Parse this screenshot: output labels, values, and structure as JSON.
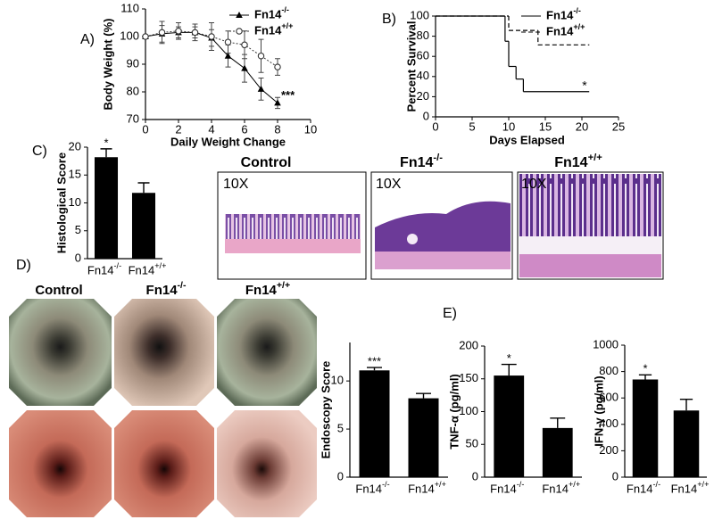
{
  "chart_data": [
    {
      "type": "line",
      "panel_label": "A)",
      "xlabel": "Daily Weight Change",
      "ylabel": "Body Weight (%)",
      "x": [
        0,
        1,
        2,
        3,
        4,
        5,
        6,
        7,
        8
      ],
      "xlim": [
        0,
        10
      ],
      "xticks": [
        0,
        2,
        4,
        6,
        8,
        10
      ],
      "ylim": [
        70,
        110
      ],
      "yticks": [
        70,
        80,
        90,
        100,
        110
      ],
      "annotation": "***",
      "series": [
        {
          "name": "Fn14-/-",
          "color": "#000000",
          "marker": "triangle",
          "line": "solid",
          "values": [
            100,
            101,
            101.5,
            101.5,
            99.5,
            93,
            88.5,
            81,
            76
          ],
          "errors": [
            0,
            3,
            2,
            2,
            3,
            4,
            5,
            4,
            2
          ]
        },
        {
          "name": "Fn14+/+",
          "color": "#333333",
          "marker": "circle-open",
          "line": "dotted",
          "values": [
            100,
            101.5,
            102,
            101.5,
            100,
            98,
            97,
            93,
            89
          ],
          "errors": [
            0,
            4,
            3,
            3,
            5,
            4,
            5,
            6,
            3
          ]
        }
      ]
    },
    {
      "type": "step",
      "panel_label": "B)",
      "xlabel": "Days Elapsed",
      "ylabel": "Percent Survival",
      "xlim": [
        0,
        25
      ],
      "xticks": [
        0,
        5,
        10,
        15,
        20,
        25
      ],
      "ylim": [
        0,
        100
      ],
      "yticks": [
        0,
        20,
        40,
        60,
        80,
        100
      ],
      "annotation": "*",
      "series": [
        {
          "name": "Fn14-/-",
          "color": "#000000",
          "line": "solid",
          "x": [
            0,
            9.5,
            10,
            11,
            12,
            21
          ],
          "values": [
            100,
            75,
            50,
            37.5,
            25,
            25
          ]
        },
        {
          "name": "Fn14+/+",
          "color": "#000000",
          "line": "dashed",
          "x": [
            0,
            10,
            14,
            21
          ],
          "values": [
            100,
            85.7,
            71.4,
            71.4
          ]
        }
      ]
    },
    {
      "type": "bar",
      "panel_label": "C)",
      "ylabel": "Histological Score",
      "categories": [
        "Fn14-/-",
        "Fn14+/+"
      ],
      "values": [
        18.2,
        11.8
      ],
      "errors": [
        1.5,
        1.8
      ],
      "color": "#000000",
      "ylim": [
        0,
        20
      ],
      "yticks": [
        0,
        5,
        10,
        15,
        20
      ],
      "annotation": "*"
    },
    {
      "type": "bar",
      "ylabel": "Endoscopy Score",
      "categories": [
        "Fn14-/-",
        "Fn14+/+"
      ],
      "values": [
        11.1,
        8.2
      ],
      "errors": [
        0.3,
        0.5
      ],
      "color": "#000000",
      "ylim": [
        0,
        14
      ],
      "yticks": [
        0,
        5,
        10
      ],
      "annotation": "***"
    },
    {
      "type": "bar",
      "panel_label": "E)",
      "ylabel": "TNF-α (pg/ml)",
      "categories": [
        "Fn14-/-",
        "Fn14+/+"
      ],
      "values": [
        155,
        75
      ],
      "errors": [
        17,
        15
      ],
      "color": "#000000",
      "ylim": [
        0,
        200
      ],
      "yticks": [
        0,
        50,
        100,
        150,
        200
      ],
      "annotation": "*"
    },
    {
      "type": "bar",
      "ylabel": "IFN-γ (pg/ml)",
      "categories": [
        "Fn14-/-",
        "Fn14+/+"
      ],
      "values": [
        740,
        505
      ],
      "errors": [
        35,
        85
      ],
      "color": "#000000",
      "ylim": [
        0,
        1000
      ],
      "yticks": [
        0,
        200,
        400,
        600,
        800,
        1000
      ],
      "annotation": "*"
    }
  ],
  "histology": {
    "panels": [
      {
        "title": "Control",
        "magnification": "10X"
      },
      {
        "title": "Fn14-/-",
        "magnification": "10X"
      },
      {
        "title": "Fn14+/+",
        "magnification": "10X"
      }
    ]
  },
  "endoscopy": {
    "panel_label": "D)",
    "columns": [
      "Control",
      "Fn14-/-",
      "Fn14+/+"
    ]
  }
}
